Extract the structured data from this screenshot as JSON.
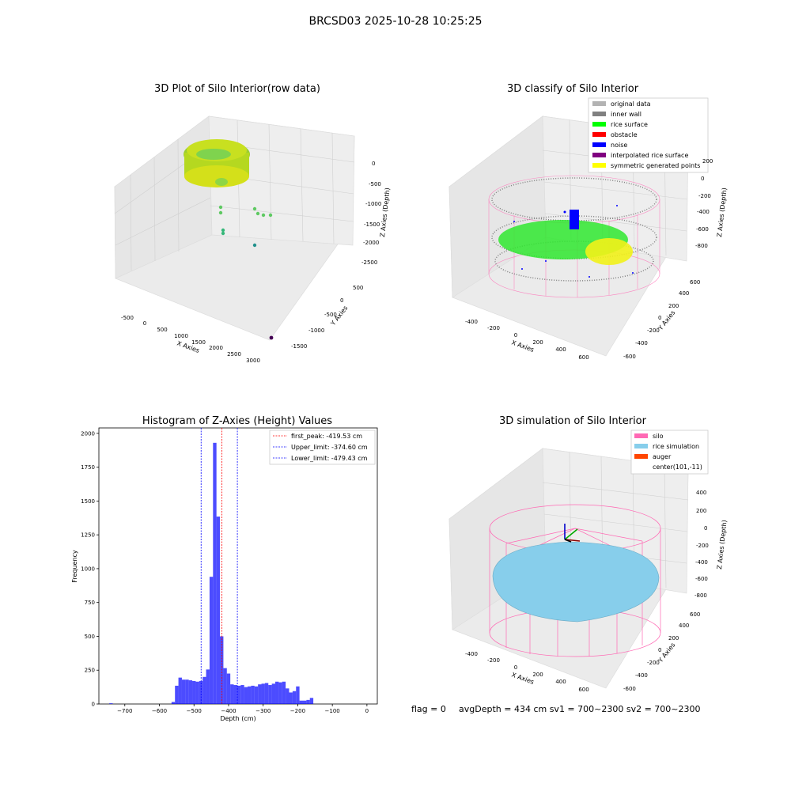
{
  "suptitle": "BRCSD03 2025-10-28 10:25:25",
  "footer": {
    "flag": "flag = 0",
    "stats": "avgDepth = 434 cm  sv1 = 700~2300  sv2 = 700~2300"
  },
  "chart_data": [
    {
      "type": "scatter",
      "title": "3D Plot of Silo Interior(row data)",
      "xlabel": "X Axies",
      "ylabel": "Y Axies",
      "zlabel": "Z Axies (Depth)",
      "x_ticks": [
        "-500",
        "0",
        "500",
        "1000",
        "1500",
        "2000",
        "2500",
        "3000"
      ],
      "y_ticks": [
        "500",
        "0",
        "-500",
        "-1000",
        "-1500"
      ],
      "z_ticks": [
        "0",
        "-500",
        "-1000",
        "-1500",
        "-2000",
        "-2500"
      ],
      "grid": true,
      "outlier_points": [
        {
          "x": 3000,
          "y": -1700,
          "z": -2600,
          "color": "#440154"
        }
      ]
    },
    {
      "type": "scatter",
      "title": "3D classify of Silo Interior",
      "xlabel": "X Axies",
      "ylabel": "Y Axies",
      "zlabel": "Z Axies (Depth)",
      "x_ticks": [
        "-400",
        "-200",
        "0",
        "200",
        "400",
        "600"
      ],
      "y_ticks": [
        "600",
        "400",
        "200",
        "0",
        "-200",
        "-400",
        "-600"
      ],
      "z_ticks": [
        "200",
        "0",
        "-200",
        "-400",
        "-600",
        "-800"
      ],
      "grid": true,
      "legend_position": "top-right",
      "legend": [
        {
          "label": "original data",
          "color": "#b3b3b3"
        },
        {
          "label": "inner wall",
          "color": "#808080"
        },
        {
          "label": "rice surface",
          "color": "#00ff00"
        },
        {
          "label": "obstacle",
          "color": "#ff0000"
        },
        {
          "label": "noise",
          "color": "#0000ff"
        },
        {
          "label": "interpolated rice surface",
          "color": "#800080"
        },
        {
          "label": "symmetric generated points",
          "color": "#ffff00"
        }
      ]
    },
    {
      "type": "bar",
      "title": "Histogram of Z-Axies (Height) Values",
      "xlabel": "Depth (cm)",
      "ylabel": "Frequency",
      "xlim": [
        -775,
        30
      ],
      "ylim": [
        0,
        2040
      ],
      "x_ticks": [
        -700,
        -600,
        -500,
        -400,
        -300,
        -200,
        -100,
        0
      ],
      "y_ticks": [
        0,
        250,
        500,
        750,
        1000,
        1250,
        1500,
        1750,
        2000
      ],
      "bar_color": "#0000ff",
      "bin_width": 10,
      "bin_starts": [
        -745,
        -565,
        -555,
        -545,
        -535,
        -525,
        -515,
        -505,
        -495,
        -485,
        -475,
        -465,
        -455,
        -445,
        -435,
        -425,
        -415,
        -405,
        -395,
        -385,
        -375,
        -365,
        -355,
        -345,
        -335,
        -325,
        -315,
        -305,
        -295,
        -285,
        -275,
        -265,
        -255,
        -245,
        -235,
        -225,
        -215,
        -205,
        -195,
        -185,
        -175,
        -165,
        -155,
        -145,
        -135,
        -125,
        -115,
        -105,
        -95,
        -85,
        -75,
        -65,
        -55,
        -45,
        -35,
        -25,
        -15,
        -5
      ],
      "values": [
        5,
        15,
        135,
        195,
        180,
        180,
        175,
        170,
        165,
        170,
        200,
        255,
        940,
        1930,
        1385,
        500,
        265,
        225,
        145,
        140,
        135,
        140,
        125,
        130,
        135,
        130,
        145,
        150,
        155,
        140,
        150,
        165,
        160,
        165,
        115,
        85,
        95,
        130,
        25,
        25,
        30,
        45,
        0,
        0,
        0,
        0,
        0,
        0,
        0,
        0,
        0,
        0,
        0,
        0,
        0,
        0,
        0,
        0
      ],
      "vlines": [
        {
          "label": "first_peak: -419.53 cm",
          "x": -419.53,
          "color": "#ff0000"
        },
        {
          "label": "Upper_limit: -374.60 cm",
          "x": -374.6,
          "color": "#0000ff"
        },
        {
          "label": "Lower_limit: -479.43 cm",
          "x": -479.43,
          "color": "#0000ff"
        }
      ],
      "legend_position": "top-right"
    },
    {
      "type": "scatter",
      "title": "3D simulation of Silo Interior",
      "xlabel": "X Axies",
      "ylabel": "Y Axies",
      "zlabel": "Z Axies (Depth)",
      "x_ticks": [
        "-400",
        "-200",
        "0",
        "200",
        "400",
        "600"
      ],
      "y_ticks": [
        "600",
        "400",
        "200",
        "0",
        "-200",
        "-400",
        "-600"
      ],
      "z_ticks": [
        "400",
        "200",
        "0",
        "-200",
        "-400",
        "-600",
        "-800"
      ],
      "grid": true,
      "legend_position": "top-right",
      "legend": [
        {
          "label": "silo",
          "color": "#ff69b4"
        },
        {
          "label": "rice simulation",
          "color": "#87ceeb"
        },
        {
          "label": "auger",
          "color": "#ff4500"
        },
        {
          "label": "center(101,-11)",
          "color": ""
        }
      ]
    }
  ]
}
